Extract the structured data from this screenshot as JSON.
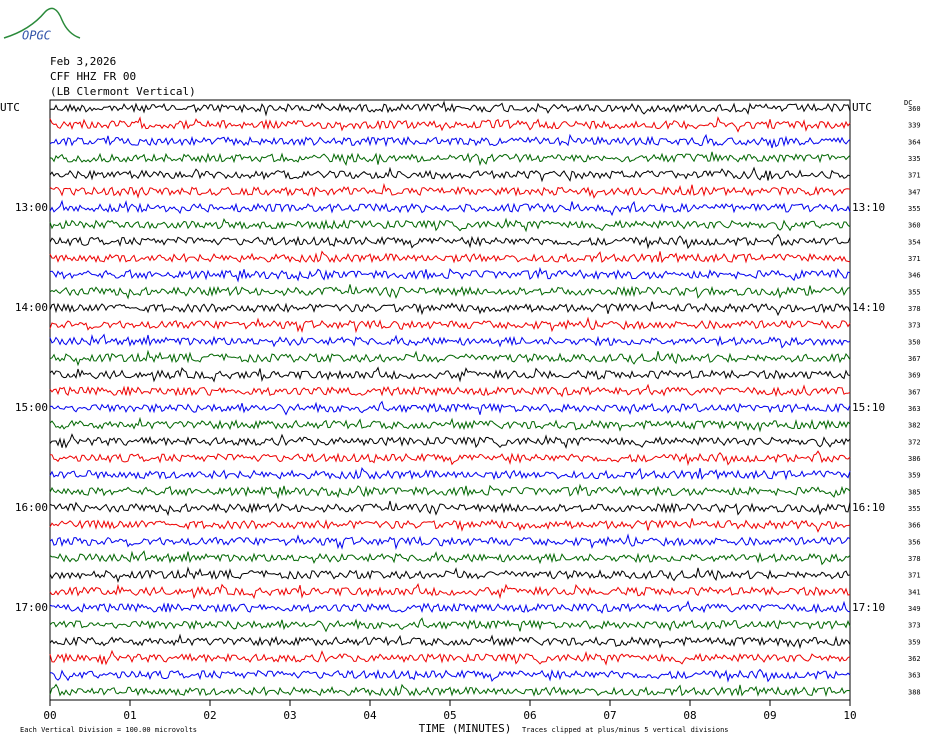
{
  "header": {
    "logo": "OPGC",
    "date": "Feb 3,2026",
    "station": "CFF HHZ FR 00",
    "location": "(LB  Clermont Vertical)"
  },
  "left_labels": [
    "UTC",
    "13:00",
    "14:00",
    "15:00",
    "16:00",
    "17:00"
  ],
  "right_labels": [
    "UTC",
    "13:10",
    "14:10",
    "15:10",
    "16:10",
    "17:10"
  ],
  "offset_header": "DC",
  "offsets": [
    "360",
    "339",
    "364",
    "335",
    "371",
    "347",
    "355",
    "360",
    "354",
    "371",
    "346",
    "355",
    "378",
    "373",
    "350",
    "367",
    "369",
    "367",
    "363",
    "382",
    "372",
    "386",
    "359",
    "385",
    "355",
    "366",
    "356",
    "378",
    "371",
    "341",
    "349",
    "373",
    "359",
    "362",
    "363",
    "388"
  ],
  "x_ticks": [
    "00",
    "01",
    "02",
    "03",
    "04",
    "05",
    "06",
    "07",
    "08",
    "09",
    "10"
  ],
  "x_title": "TIME (MINUTES)",
  "footer_left": "Each Vertical Division =  100.00 microvolts",
  "footer_right": "Traces clipped at plus/minus 5 vertical divisions"
}
